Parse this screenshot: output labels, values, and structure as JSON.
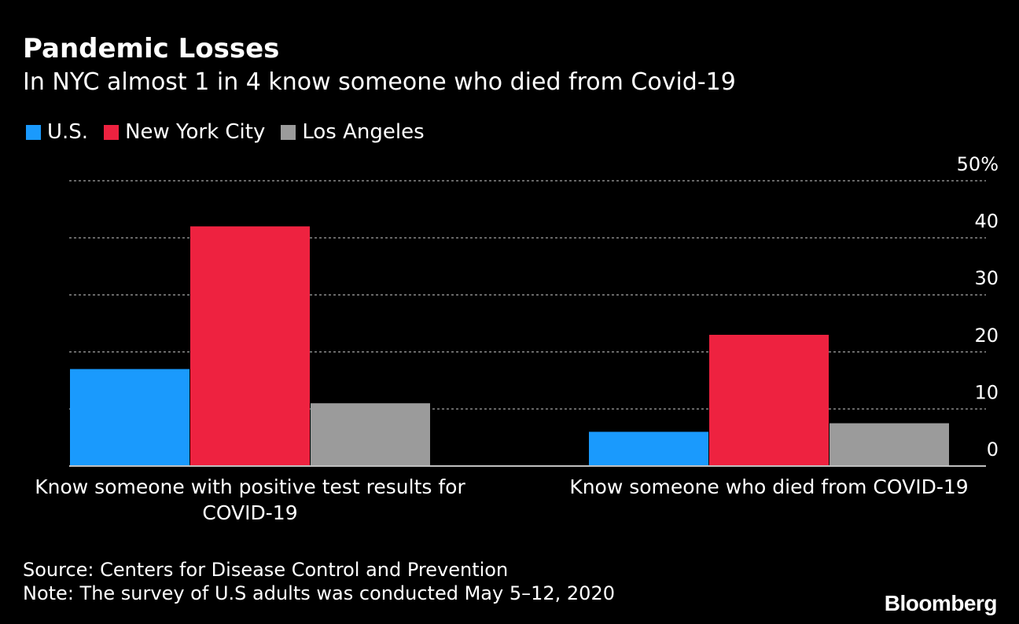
{
  "header": {
    "title": "Pandemic Losses",
    "subtitle": "In NYC almost 1 in 4 know someone who died from Covid-19"
  },
  "legend": [
    {
      "label": "U.S.",
      "color": "#1a9afd"
    },
    {
      "label": "New York City",
      "color": "#ee2240"
    },
    {
      "label": "Los Angeles",
      "color": "#9b9b9b"
    }
  ],
  "chart_data": {
    "type": "bar",
    "categories": [
      [
        "Know someone with positive test results for",
        "COVID-19"
      ],
      [
        "Know someone who died from COVID-19"
      ]
    ],
    "series": [
      {
        "name": "U.S.",
        "color": "#1a9afd",
        "values": [
          17,
          6
        ]
      },
      {
        "name": "New York City",
        "color": "#ee2240",
        "values": [
          42,
          23
        ]
      },
      {
        "name": "Los Angeles",
        "color": "#9b9b9b",
        "values": [
          11,
          7.5
        ]
      }
    ],
    "ylim": [
      0,
      50
    ],
    "yticks": [
      0,
      10,
      20,
      30,
      40,
      50
    ],
    "ytick_labels": [
      "0",
      "10",
      "20",
      "30",
      "40",
      "50%"
    ],
    "grid": true,
    "axis_position": "right",
    "legend_position": "top-left"
  },
  "footer": {
    "source": "Source: Centers for Disease Control and Prevention",
    "note": "Note: The survey of U.S adults was conducted May 5–12, 2020",
    "brand": "Bloomberg"
  }
}
